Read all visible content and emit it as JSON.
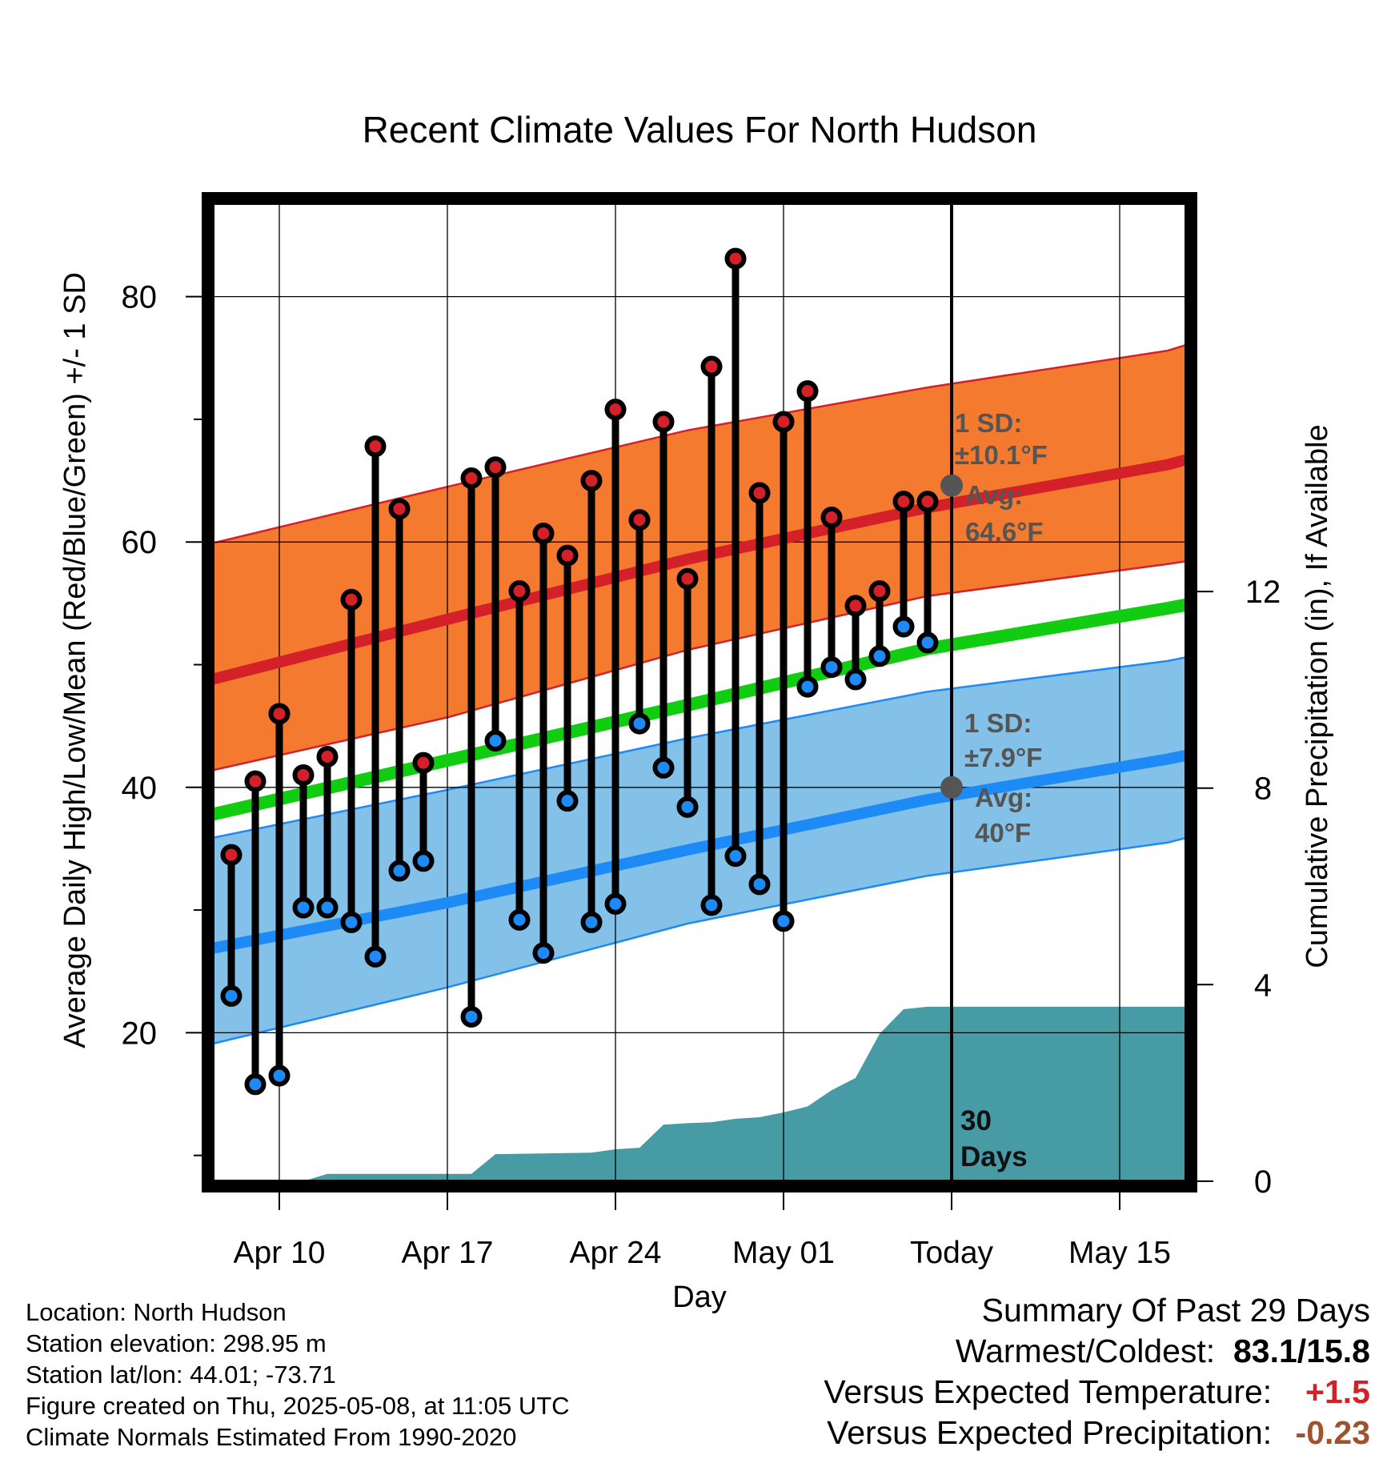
{
  "chart_data": {
    "type": "line",
    "title": "Recent Climate Values For North Hudson",
    "xlabel": "Day",
    "ylabel": "Average Daily High/Low/Mean (Red/Blue/Green) +/- 1 SD",
    "y2label": "Cumulative Precipitation (in), If Available",
    "x_tick_labels": [
      "Apr 10",
      "Apr 17",
      "Apr 24",
      "May 01",
      "Today",
      "May 15"
    ],
    "ylim": [
      7.5,
      88
    ],
    "y_ticks": [
      20,
      40,
      60,
      80
    ],
    "y2lim": [
      -0.1,
      20
    ],
    "y2_ticks": [
      0,
      4,
      8,
      12
    ],
    "grid": true,
    "today_date": "2025-05-08",
    "period_label": "30\nDays",
    "daily": {
      "dates": [
        "Apr 08",
        "Apr 09",
        "Apr 10",
        "Apr 11",
        "Apr 12",
        "Apr 13",
        "Apr 14",
        "Apr 15",
        "Apr 16",
        "Apr 17",
        "Apr 18",
        "Apr 19",
        "Apr 20",
        "Apr 21",
        "Apr 22",
        "Apr 23",
        "Apr 24",
        "Apr 25",
        "Apr 26",
        "Apr 27",
        "Apr 28",
        "Apr 29",
        "Apr 30",
        "May 01",
        "May 02",
        "May 03",
        "May 04",
        "May 05",
        "May 06",
        "May 07"
      ],
      "high": [
        34.5,
        40.5,
        46,
        41,
        42.5,
        55.3,
        67.8,
        62.7,
        42,
        null,
        65.2,
        66.1,
        56,
        60.7,
        58.9,
        65,
        70.8,
        61.8,
        69.8,
        57,
        74.3,
        83.1,
        64,
        69.8,
        72.3,
        62,
        54.8,
        56,
        63.3,
        63.3
      ],
      "low": [
        23,
        15.8,
        16.5,
        30.2,
        30.2,
        29,
        26.2,
        33.2,
        34,
        null,
        21.3,
        43.8,
        29.2,
        26.5,
        38.9,
        29,
        30.5,
        45.2,
        41.6,
        38.4,
        30.4,
        34.4,
        32.1,
        29.1,
        48.2,
        49.8,
        48.8,
        50.7,
        53.1,
        51.8
      ]
    },
    "normals": {
      "dates": [
        "Apr 07",
        "Apr 17",
        "Apr 27",
        "May 07",
        "May 17",
        "May 20"
      ],
      "high_mean": [
        48.7,
        53.7,
        58.6,
        62.8,
        66.3,
        67.9
      ],
      "high_upper": [
        59.8,
        64.5,
        69.1,
        72.6,
        75.6,
        77.4
      ],
      "high_lower": [
        41.3,
        45.7,
        51.2,
        55.6,
        58.2,
        59.1
      ],
      "low_mean": [
        26.8,
        30.6,
        34.9,
        39.0,
        42.3,
        43.5
      ],
      "low_upper": [
        35.8,
        39.8,
        44.0,
        47.8,
        50.3,
        51.5
      ],
      "low_lower": [
        19.0,
        23.7,
        28.9,
        32.8,
        35.5,
        37.0
      ],
      "avg_mean": [
        37.7,
        42.2,
        46.7,
        51.3,
        54.6,
        55.7
      ]
    },
    "precip_cumulative": {
      "dates": [
        "Apr 07",
        "Apr 11",
        "Apr 12",
        "Apr 18",
        "Apr 19",
        "Apr 23",
        "Apr 24",
        "Apr 25",
        "Apr 26",
        "Apr 27",
        "Apr 28",
        "Apr 29",
        "Apr 30",
        "May 01",
        "May 02",
        "May 03",
        "May 04",
        "May 05",
        "May 06",
        "May 07",
        "May 08",
        "May 20"
      ],
      "values": [
        0,
        0,
        0.15,
        0.15,
        0.55,
        0.58,
        0.65,
        0.68,
        1.15,
        1.18,
        1.2,
        1.27,
        1.3,
        1.4,
        1.52,
        1.85,
        2.1,
        3.0,
        3.5,
        3.55,
        3.55,
        3.55
      ]
    },
    "annotations": {
      "high_sd_label": "1 SD:",
      "high_sd_value": "±10.1°F",
      "high_avg_label": "Avg:",
      "high_avg_value": "64.6°F",
      "low_sd_label": "1 SD:",
      "low_sd_value": "±7.9°F",
      "low_avg_label": "Avg:",
      "low_avg_value": "40°F",
      "high_avg_num": 64.6,
      "low_avg_num": 40
    },
    "colors": {
      "high_band": "#f37a2f",
      "high_line": "#d42129",
      "low_band": "#84c1e9",
      "low_line": "#1e8af6",
      "avg_line": "#11cc11",
      "precip": "#479ba5",
      "high_dot": "#d42129",
      "low_dot": "#1e8af6",
      "annotation": "#555555"
    }
  },
  "location": {
    "name_line": "Location: North Hudson",
    "elevation_line": "Station elevation: 298.95 m",
    "latlon_line": "Station lat/lon: 44.01; -73.71",
    "created_line": "Figure created on Thu, 2025-05-08, at 11:05 UTC",
    "normals_line": "Climate Normals Estimated From 1990-2020"
  },
  "summary": {
    "title": "Summary Of Past 29 Days",
    "warmest_label": "Warmest/Coldest:",
    "warmest_value": "83.1/15.8",
    "temp_label": "Versus Expected Temperature:",
    "temp_value": "+1.5",
    "temp_color": "#d42129",
    "precip_label": "Versus Expected Precipitation:",
    "precip_value": "-0.23",
    "precip_color": "#a0522d"
  }
}
